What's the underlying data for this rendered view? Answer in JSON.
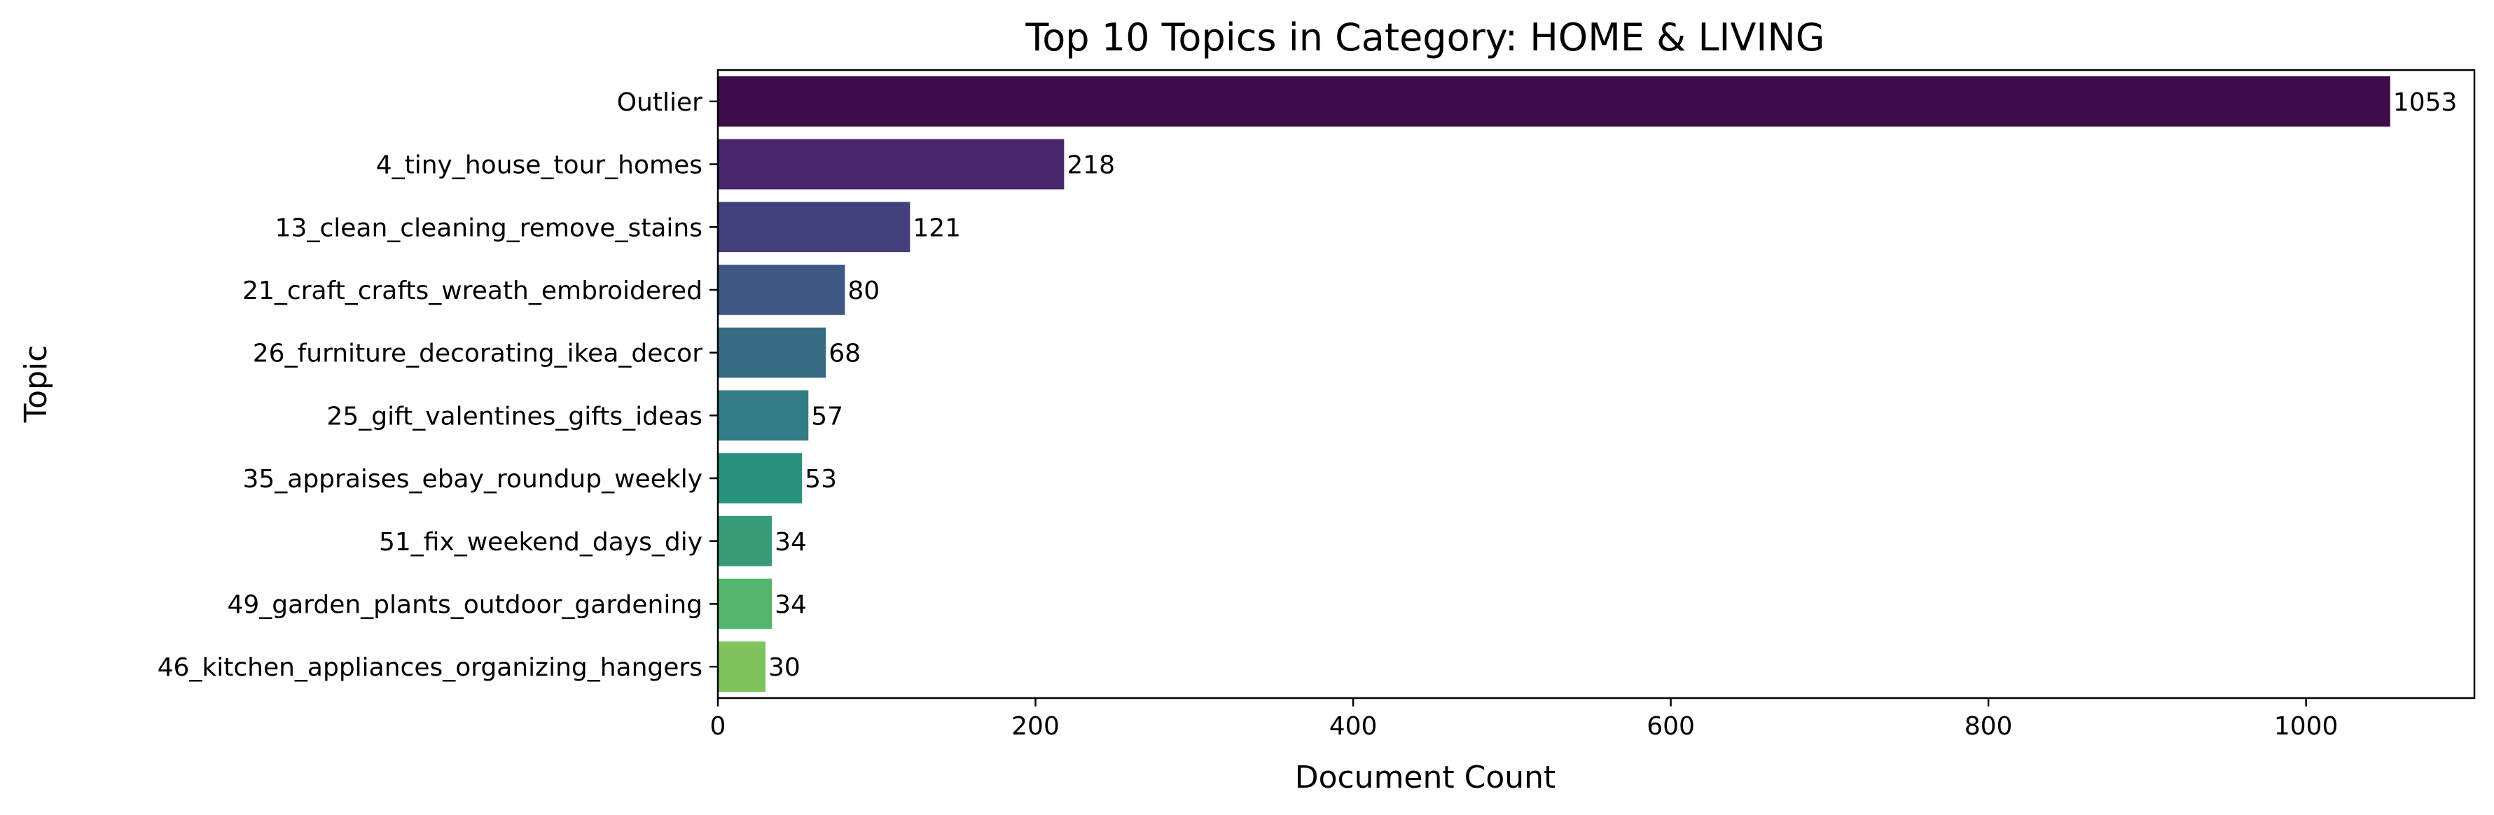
{
  "chart_data": {
    "type": "bar",
    "orientation": "horizontal",
    "title": "Top 10 Topics in Category: HOME & LIVING",
    "xlabel": "Document Count",
    "ylabel": "Topic",
    "xlim": [
      0,
      1106
    ],
    "xticks": [
      0,
      200,
      400,
      600,
      800,
      1000
    ],
    "grid": false,
    "categories": [
      "Outlier",
      "4_tiny_house_tour_homes",
      "13_clean_cleaning_remove_stains",
      "21_craft_crafts_wreath_embroidered",
      "26_furniture_decorating_ikea_decor",
      "25_gift_valentines_gifts_ideas",
      "35_appraises_ebay_roundup_weekly",
      "51_fix_weekend_days_diy",
      "49_garden_plants_outdoor_gardening",
      "46_kitchen_appliances_organizing_hangers"
    ],
    "values": [
      1053,
      218,
      121,
      80,
      68,
      57,
      53,
      34,
      34,
      30
    ],
    "colors": [
      "#440154",
      "#482878",
      "#3E4A89",
      "#31688E",
      "#26828E",
      "#1F9E89",
      "#35B779",
      "#6ECE58",
      "#B5DE2B",
      "#FDE725"
    ],
    "bar_colors": [
      "#3f0c4a",
      "#47266a",
      "#443f7d",
      "#3f5783",
      "#386c85",
      "#327c83",
      "#2a927c",
      "#369b76",
      "#55b56d",
      "#7fc35c"
    ]
  }
}
